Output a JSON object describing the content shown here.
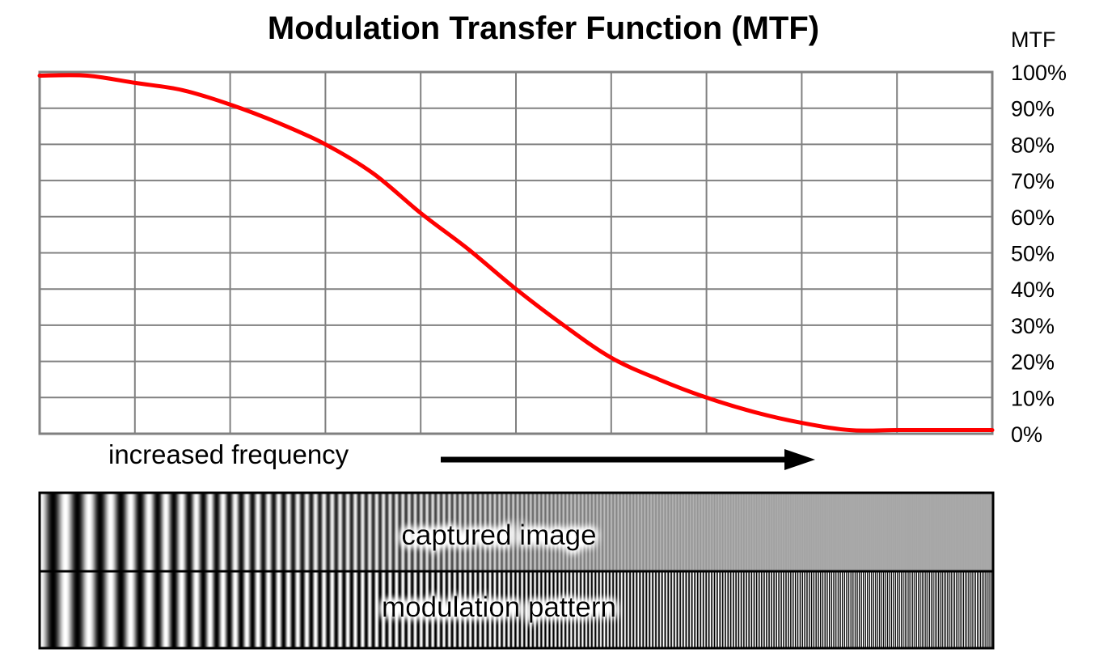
{
  "chart_data": {
    "type": "line",
    "title": "Modulation Transfer Function (MTF)",
    "xlabel": "increased frequency",
    "ylabel": "MTF",
    "ylim": [
      0,
      100
    ],
    "xlim": [
      0,
      10
    ],
    "x_tick_labels_shown": false,
    "y_ticks": [
      "0%",
      "10%",
      "20%",
      "30%",
      "40%",
      "50%",
      "60%",
      "70%",
      "80%",
      "90%",
      "100%"
    ],
    "y_axis_side": "right",
    "grid": true,
    "series": [
      {
        "color": "#ff0000",
        "x": [
          0,
          0.5,
          1,
          1.5,
          2,
          2.5,
          3,
          3.5,
          4,
          4.5,
          5,
          5.5,
          6,
          6.5,
          7,
          7.5,
          8,
          8.5,
          9,
          9.5,
          10
        ],
        "y": [
          99,
          99,
          97,
          95,
          91,
          86,
          80,
          72,
          61,
          51,
          40,
          30,
          21,
          15,
          10,
          6,
          3,
          1,
          1,
          1,
          1
        ]
      }
    ]
  },
  "colors": {
    "curve": "#ff0000",
    "grid": "#808080",
    "text": "#000000"
  },
  "figure": {
    "arrow_label": "increased frequency",
    "strip_top_label": "captured image",
    "strip_bottom_label": "modulation pattern"
  }
}
